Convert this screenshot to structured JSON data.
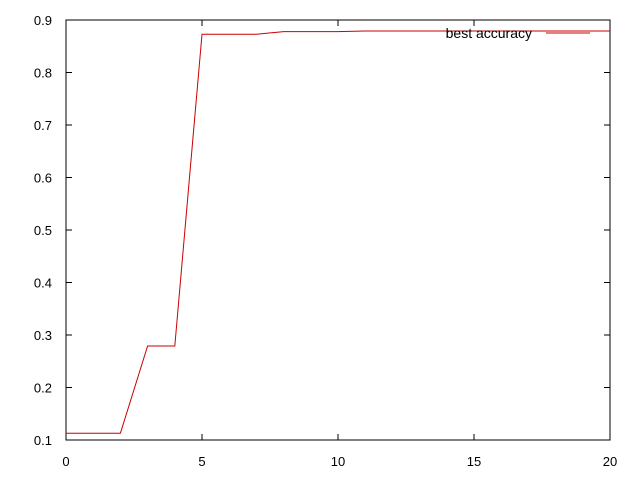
{
  "chart_data": {
    "type": "line",
    "title": "",
    "xlabel": "",
    "ylabel": "",
    "xlim": [
      0,
      20
    ],
    "ylim": [
      0.1,
      0.9
    ],
    "xticks": [
      0,
      5,
      10,
      15,
      20
    ],
    "yticks": [
      0.1,
      0.2,
      0.3,
      0.4,
      0.5,
      0.6,
      0.7,
      0.8,
      0.9
    ],
    "xtick_labels": [
      "0",
      "5",
      "10",
      "15",
      "20"
    ],
    "ytick_labels": [
      "0.1",
      "0.2",
      "0.3",
      "0.4",
      "0.5",
      "0.6",
      "0.7",
      "0.8",
      "0.9"
    ],
    "grid": false,
    "legend": "top-right",
    "series": [
      {
        "name": "best accuracy",
        "color": "#cc0000",
        "x": [
          0,
          1,
          2,
          3,
          4,
          5,
          6,
          7,
          8,
          9,
          10,
          11,
          12,
          13,
          14,
          15,
          16,
          17,
          18,
          19,
          20
        ],
        "y": [
          0.113,
          0.113,
          0.113,
          0.279,
          0.279,
          0.873,
          0.873,
          0.873,
          0.878,
          0.878,
          0.878,
          0.879,
          0.879,
          0.879,
          0.879,
          0.879,
          0.879,
          0.879,
          0.879,
          0.879,
          0.879
        ]
      }
    ]
  }
}
